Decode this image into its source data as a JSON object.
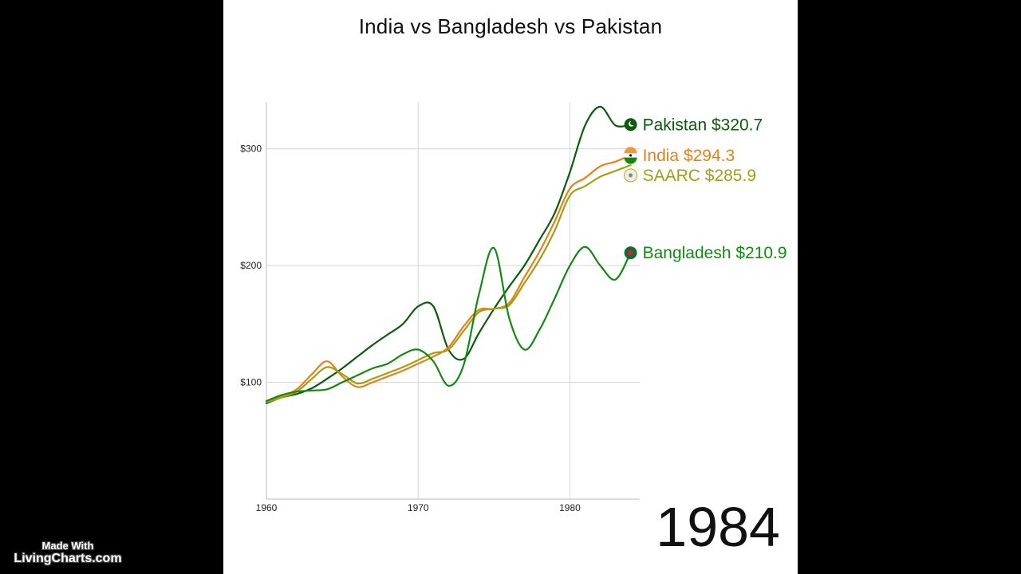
{
  "chart_data": {
    "type": "line",
    "title": "India vs Bangladesh vs Pakistan",
    "xlabel": "",
    "ylabel": "",
    "xlim": [
      1960,
      1984.6
    ],
    "ylim": [
      0,
      340
    ],
    "x_ticks": [
      1960,
      1970,
      1980
    ],
    "y_ticks": [
      100,
      200,
      300
    ],
    "y_tick_labels": [
      "$100",
      "$200",
      "$300"
    ],
    "grid": true,
    "legend": "end-of-line labels on the right",
    "current_year": "1984",
    "series": [
      {
        "name": "Pakistan",
        "end_label": "Pakistan $320.7",
        "color": "#0b5c0b",
        "icon": "pakistan-flag-icon",
        "x": [
          1960,
          1961,
          1962,
          1963,
          1964,
          1965,
          1966,
          1967,
          1968,
          1969,
          1970,
          1971,
          1972,
          1973,
          1974,
          1975,
          1976,
          1977,
          1978,
          1979,
          1980,
          1981,
          1982,
          1983,
          1984
        ],
        "y": [
          82,
          87,
          90,
          95,
          103,
          112,
          122,
          132,
          141,
          150,
          165,
          165,
          128,
          120,
          142,
          163,
          182,
          200,
          222,
          245,
          280,
          320,
          336,
          320,
          320.7
        ]
      },
      {
        "name": "India",
        "end_label": "India $294.3",
        "color": "#e8801a",
        "icon": "india-flag-icon",
        "x": [
          1960,
          1961,
          1962,
          1963,
          1964,
          1965,
          1966,
          1967,
          1968,
          1969,
          1970,
          1971,
          1972,
          1973,
          1974,
          1975,
          1976,
          1977,
          1978,
          1979,
          1980,
          1981,
          1982,
          1983,
          1984
        ],
        "y": [
          84,
          88,
          94,
          107,
          118,
          105,
          96,
          100,
          105,
          110,
          116,
          122,
          130,
          148,
          162,
          163,
          168,
          190,
          212,
          238,
          266,
          275,
          285,
          289,
          294.3
        ]
      },
      {
        "name": "SAARC",
        "end_label": "SAARC $285.9",
        "color": "#a0a010",
        "icon": "saarc-flag-icon",
        "x": [
          1960,
          1961,
          1962,
          1963,
          1964,
          1965,
          1966,
          1967,
          1968,
          1969,
          1970,
          1971,
          1972,
          1973,
          1974,
          1975,
          1976,
          1977,
          1978,
          1979,
          1980,
          1981,
          1982,
          1983,
          1984
        ],
        "y": [
          83,
          87,
          92,
          103,
          113,
          107,
          99,
          103,
          108,
          113,
          119,
          125,
          128,
          144,
          160,
          163,
          166,
          185,
          205,
          230,
          260,
          268,
          276,
          281,
          285.9
        ]
      },
      {
        "name": "Bangladesh",
        "end_label": "Bangladesh $210.9",
        "color": "#128a12",
        "icon": "bangladesh-flag-icon",
        "x": [
          1960,
          1961,
          1962,
          1963,
          1964,
          1965,
          1966,
          1967,
          1968,
          1969,
          1970,
          1971,
          1972,
          1973,
          1974,
          1975,
          1976,
          1977,
          1978,
          1979,
          1980,
          1981,
          1982,
          1983,
          1984
        ],
        "y": [
          84,
          89,
          92,
          93,
          94,
          100,
          106,
          112,
          116,
          124,
          128,
          118,
          97,
          115,
          175,
          215,
          155,
          128,
          145,
          172,
          200,
          216,
          200,
          188,
          210.9
        ]
      }
    ]
  },
  "watermark": {
    "line1": "Made With",
    "line2": "LivingCharts.com"
  }
}
